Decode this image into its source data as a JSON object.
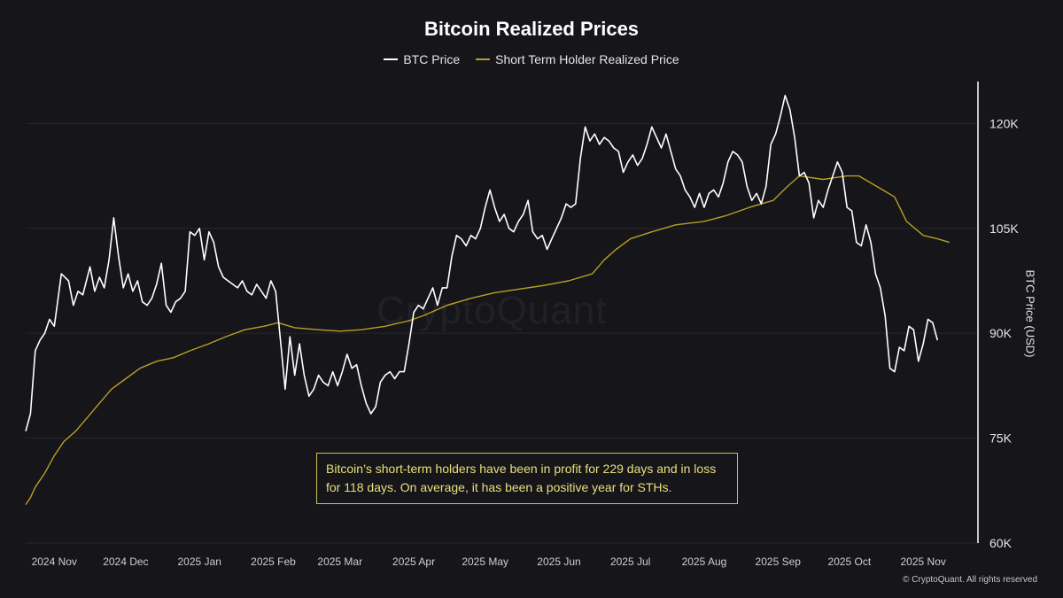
{
  "title": "Bitcoin Realized Prices",
  "watermark": "CryptoQuant",
  "copyright": "© CryptoQuant. All rights reserved",
  "annotation": "Bitcoin’s short-term holders have been in profit for 229 days and in loss for 118 days. On average, it has been a positive year for STHs.",
  "colors": {
    "background": "#15151a",
    "btc_price": "#ffffff",
    "sth_realized_price": "#b89f25",
    "annotation_border": "#c8c05a",
    "annotation_text": "#e8e07a",
    "grid": "#26262c"
  },
  "chart_data": {
    "type": "line",
    "title": "Bitcoin Realized Prices",
    "xlabel": "",
    "ylabel": "BTC Price (USD)",
    "y_axis_side": "right",
    "ylim": [
      60000,
      126000
    ],
    "yticks": [
      60000,
      75000,
      90000,
      105000,
      120000
    ],
    "ytick_labels": [
      "60K",
      "75K",
      "90K",
      "105K",
      "120K"
    ],
    "xlim": [
      "2024-10-20",
      "2025-11-24"
    ],
    "xticks": [
      "2024-11-01",
      "2024-12-01",
      "2025-01-01",
      "2025-02-01",
      "2025-03-01",
      "2025-04-01",
      "2025-05-01",
      "2025-06-01",
      "2025-07-01",
      "2025-08-01",
      "2025-09-01",
      "2025-10-01",
      "2025-11-01"
    ],
    "xtick_labels": [
      "2024 Nov",
      "2024 Dec",
      "2025 Jan",
      "2025 Feb",
      "2025 Mar",
      "2025 Apr",
      "2025 May",
      "2025 Jun",
      "2025 Jul",
      "2025 Aug",
      "2025 Sep",
      "2025 Oct",
      "2025 Nov"
    ],
    "grid": "horizontal",
    "legend_position": "top-center",
    "series": [
      {
        "name": "BTC Price",
        "color": "#ffffff",
        "points": [
          [
            "2024-10-20",
            76000
          ],
          [
            "2024-10-22",
            78500
          ],
          [
            "2024-10-24",
            87500
          ],
          [
            "2024-10-26",
            89000
          ],
          [
            "2024-10-28",
            90000
          ],
          [
            "2024-10-30",
            92000
          ],
          [
            "2024-11-01",
            91000
          ],
          [
            "2024-11-04",
            98500
          ],
          [
            "2024-11-07",
            97500
          ],
          [
            "2024-11-09",
            94000
          ],
          [
            "2024-11-11",
            96000
          ],
          [
            "2024-11-13",
            95500
          ],
          [
            "2024-11-16",
            99500
          ],
          [
            "2024-11-18",
            96000
          ],
          [
            "2024-11-20",
            98000
          ],
          [
            "2024-11-22",
            96500
          ],
          [
            "2024-11-24",
            100500
          ],
          [
            "2024-11-26",
            106500
          ],
          [
            "2024-11-28",
            101000
          ],
          [
            "2024-11-30",
            96500
          ],
          [
            "2024-12-02",
            98500
          ],
          [
            "2024-12-04",
            96000
          ],
          [
            "2024-12-06",
            97500
          ],
          [
            "2024-12-08",
            94500
          ],
          [
            "2024-12-10",
            94000
          ],
          [
            "2024-12-12",
            95000
          ],
          [
            "2024-12-14",
            97000
          ],
          [
            "2024-12-16",
            100000
          ],
          [
            "2024-12-18",
            94000
          ],
          [
            "2024-12-20",
            93000
          ],
          [
            "2024-12-22",
            94500
          ],
          [
            "2024-12-24",
            95000
          ],
          [
            "2024-12-26",
            96000
          ],
          [
            "2024-12-28",
            104500
          ],
          [
            "2024-12-30",
            104000
          ],
          [
            "2025-01-01",
            105000
          ],
          [
            "2025-01-03",
            100500
          ],
          [
            "2025-01-05",
            104500
          ],
          [
            "2025-01-07",
            103000
          ],
          [
            "2025-01-09",
            99500
          ],
          [
            "2025-01-11",
            98000
          ],
          [
            "2025-01-13",
            97500
          ],
          [
            "2025-01-15",
            97000
          ],
          [
            "2025-01-17",
            96500
          ],
          [
            "2025-01-19",
            97500
          ],
          [
            "2025-01-21",
            96000
          ],
          [
            "2025-01-23",
            95500
          ],
          [
            "2025-01-25",
            97000
          ],
          [
            "2025-01-27",
            96000
          ],
          [
            "2025-01-29",
            95000
          ],
          [
            "2025-01-31",
            97500
          ],
          [
            "2025-02-02",
            96000
          ],
          [
            "2025-02-03",
            92500
          ],
          [
            "2025-02-04",
            89000
          ],
          [
            "2025-02-06",
            82000
          ],
          [
            "2025-02-08",
            89500
          ],
          [
            "2025-02-10",
            84000
          ],
          [
            "2025-02-12",
            88500
          ],
          [
            "2025-02-14",
            84000
          ],
          [
            "2025-02-16",
            81000
          ],
          [
            "2025-02-18",
            82000
          ],
          [
            "2025-02-20",
            84000
          ],
          [
            "2025-02-22",
            83000
          ],
          [
            "2025-02-24",
            82500
          ],
          [
            "2025-02-26",
            84500
          ],
          [
            "2025-02-28",
            82500
          ],
          [
            "2025-03-02",
            84500
          ],
          [
            "2025-03-04",
            87000
          ],
          [
            "2025-03-06",
            85000
          ],
          [
            "2025-03-08",
            85500
          ],
          [
            "2025-03-10",
            82500
          ],
          [
            "2025-03-12",
            80000
          ],
          [
            "2025-03-14",
            78500
          ],
          [
            "2025-03-16",
            79500
          ],
          [
            "2025-03-18",
            83000
          ],
          [
            "2025-03-20",
            84000
          ],
          [
            "2025-03-22",
            84500
          ],
          [
            "2025-03-24",
            83500
          ],
          [
            "2025-03-26",
            84500
          ],
          [
            "2025-03-28",
            84500
          ],
          [
            "2025-03-30",
            88500
          ],
          [
            "2025-04-01",
            93000
          ],
          [
            "2025-04-03",
            94000
          ],
          [
            "2025-04-05",
            93500
          ],
          [
            "2025-04-07",
            95000
          ],
          [
            "2025-04-09",
            96500
          ],
          [
            "2025-04-11",
            94000
          ],
          [
            "2025-04-13",
            96500
          ],
          [
            "2025-04-15",
            96500
          ],
          [
            "2025-04-17",
            101000
          ],
          [
            "2025-04-19",
            104000
          ],
          [
            "2025-04-21",
            103500
          ],
          [
            "2025-04-23",
            102500
          ],
          [
            "2025-04-25",
            104000
          ],
          [
            "2025-04-27",
            103500
          ],
          [
            "2025-04-29",
            105000
          ],
          [
            "2025-05-01",
            108000
          ],
          [
            "2025-05-03",
            110500
          ],
          [
            "2025-05-05",
            108000
          ],
          [
            "2025-05-07",
            106000
          ],
          [
            "2025-05-09",
            107000
          ],
          [
            "2025-05-11",
            105000
          ],
          [
            "2025-05-13",
            104500
          ],
          [
            "2025-05-15",
            106000
          ],
          [
            "2025-05-17",
            107000
          ],
          [
            "2025-05-19",
            109000
          ],
          [
            "2025-05-21",
            104500
          ],
          [
            "2025-05-23",
            103500
          ],
          [
            "2025-05-25",
            104000
          ],
          [
            "2025-05-27",
            102000
          ],
          [
            "2025-05-29",
            103500
          ],
          [
            "2025-05-31",
            105000
          ],
          [
            "2025-06-02",
            106500
          ],
          [
            "2025-06-04",
            108500
          ],
          [
            "2025-06-06",
            108000
          ],
          [
            "2025-06-08",
            108500
          ],
          [
            "2025-06-10",
            115000
          ],
          [
            "2025-06-12",
            119500
          ],
          [
            "2025-06-14",
            117500
          ],
          [
            "2025-06-16",
            118500
          ],
          [
            "2025-06-18",
            117000
          ],
          [
            "2025-06-20",
            118000
          ],
          [
            "2025-06-22",
            117500
          ],
          [
            "2025-06-24",
            116500
          ],
          [
            "2025-06-26",
            116000
          ],
          [
            "2025-06-28",
            113000
          ],
          [
            "2025-06-30",
            114500
          ],
          [
            "2025-07-02",
            115500
          ],
          [
            "2025-07-04",
            114000
          ],
          [
            "2025-07-06",
            115000
          ],
          [
            "2025-07-08",
            117000
          ],
          [
            "2025-07-10",
            119500
          ],
          [
            "2025-07-12",
            118000
          ],
          [
            "2025-07-14",
            116500
          ],
          [
            "2025-07-16",
            118500
          ],
          [
            "2025-07-18",
            116000
          ],
          [
            "2025-07-20",
            113500
          ],
          [
            "2025-07-22",
            112500
          ],
          [
            "2025-07-24",
            110500
          ],
          [
            "2025-07-26",
            109500
          ],
          [
            "2025-07-28",
            108000
          ],
          [
            "2025-07-30",
            110000
          ],
          [
            "2025-08-01",
            108000
          ],
          [
            "2025-08-03",
            110000
          ],
          [
            "2025-08-05",
            110500
          ],
          [
            "2025-08-07",
            109500
          ],
          [
            "2025-08-09",
            111500
          ],
          [
            "2025-08-11",
            114500
          ],
          [
            "2025-08-13",
            116000
          ],
          [
            "2025-08-15",
            115500
          ],
          [
            "2025-08-17",
            114500
          ],
          [
            "2025-08-19",
            111000
          ],
          [
            "2025-08-21",
            109000
          ],
          [
            "2025-08-23",
            110000
          ],
          [
            "2025-08-25",
            108500
          ],
          [
            "2025-08-27",
            111000
          ],
          [
            "2025-08-29",
            117000
          ],
          [
            "2025-08-31",
            118500
          ],
          [
            "2025-09-02",
            121000
          ],
          [
            "2025-09-04",
            124000
          ],
          [
            "2025-09-06",
            122000
          ],
          [
            "2025-09-08",
            118000
          ],
          [
            "2025-09-10",
            112500
          ],
          [
            "2025-09-12",
            113000
          ],
          [
            "2025-09-14",
            111500
          ],
          [
            "2025-09-16",
            106500
          ],
          [
            "2025-09-18",
            109000
          ],
          [
            "2025-09-20",
            108000
          ],
          [
            "2025-09-22",
            110500
          ],
          [
            "2025-09-24",
            112500
          ],
          [
            "2025-09-26",
            114500
          ],
          [
            "2025-09-28",
            113000
          ],
          [
            "2025-09-30",
            108000
          ],
          [
            "2025-10-02",
            107500
          ],
          [
            "2025-10-04",
            103000
          ],
          [
            "2025-10-06",
            102500
          ],
          [
            "2025-10-08",
            105500
          ],
          [
            "2025-10-10",
            103000
          ],
          [
            "2025-10-12",
            98500
          ],
          [
            "2025-10-14",
            96500
          ],
          [
            "2025-10-16",
            92500
          ],
          [
            "2025-10-18",
            85000
          ],
          [
            "2025-10-20",
            84500
          ],
          [
            "2025-10-22",
            88000
          ],
          [
            "2025-10-24",
            87500
          ],
          [
            "2025-10-26",
            91000
          ],
          [
            "2025-10-28",
            90500
          ],
          [
            "2025-10-30",
            86000
          ],
          [
            "2025-11-01",
            88500
          ],
          [
            "2025-11-03",
            92000
          ],
          [
            "2025-11-05",
            91500
          ],
          [
            "2025-11-07",
            89000
          ]
        ]
      },
      {
        "name": "Short Term Holder Realized Price",
        "color": "#b89f25",
        "points": [
          [
            "2024-10-20",
            65500
          ],
          [
            "2024-10-22",
            66500
          ],
          [
            "2024-10-24",
            68000
          ],
          [
            "2024-10-28",
            70000
          ],
          [
            "2024-11-01",
            72500
          ],
          [
            "2024-11-05",
            74500
          ],
          [
            "2024-11-10",
            76000
          ],
          [
            "2024-11-15",
            78000
          ],
          [
            "2024-11-20",
            80000
          ],
          [
            "2024-11-25",
            82000
          ],
          [
            "2024-12-01",
            83500
          ],
          [
            "2024-12-07",
            85000
          ],
          [
            "2024-12-14",
            86000
          ],
          [
            "2024-12-21",
            86500
          ],
          [
            "2024-12-28",
            87500
          ],
          [
            "2025-01-05",
            88500
          ],
          [
            "2025-01-12",
            89500
          ],
          [
            "2025-01-20",
            90500
          ],
          [
            "2025-01-28",
            91000
          ],
          [
            "2025-02-03",
            91500
          ],
          [
            "2025-02-10",
            90800
          ],
          [
            "2025-02-20",
            90500
          ],
          [
            "2025-03-01",
            90300
          ],
          [
            "2025-03-10",
            90500
          ],
          [
            "2025-03-20",
            91000
          ],
          [
            "2025-03-30",
            91800
          ],
          [
            "2025-04-05",
            92500
          ],
          [
            "2025-04-15",
            94000
          ],
          [
            "2025-04-25",
            95000
          ],
          [
            "2025-05-05",
            95800
          ],
          [
            "2025-05-15",
            96300
          ],
          [
            "2025-05-25",
            96800
          ],
          [
            "2025-06-05",
            97500
          ],
          [
            "2025-06-15",
            98500
          ],
          [
            "2025-06-20",
            100500
          ],
          [
            "2025-06-25",
            102000
          ],
          [
            "2025-07-01",
            103500
          ],
          [
            "2025-07-10",
            104500
          ],
          [
            "2025-07-20",
            105500
          ],
          [
            "2025-08-01",
            106000
          ],
          [
            "2025-08-10",
            106800
          ],
          [
            "2025-08-20",
            108000
          ],
          [
            "2025-08-30",
            109000
          ],
          [
            "2025-09-05",
            111000
          ],
          [
            "2025-09-10",
            112500
          ],
          [
            "2025-09-20",
            112000
          ],
          [
            "2025-09-30",
            112500
          ],
          [
            "2025-10-05",
            112500
          ],
          [
            "2025-10-10",
            111500
          ],
          [
            "2025-10-15",
            110500
          ],
          [
            "2025-10-20",
            109500
          ],
          [
            "2025-10-25",
            106000
          ],
          [
            "2025-11-01",
            104000
          ],
          [
            "2025-11-07",
            103500
          ],
          [
            "2025-11-12",
            103000
          ]
        ]
      }
    ]
  }
}
